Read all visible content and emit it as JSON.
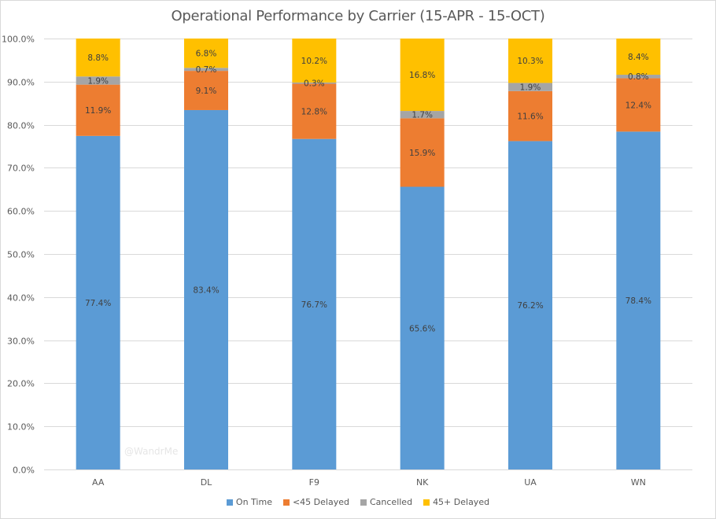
{
  "chart_data": {
    "type": "bar",
    "stacked": true,
    "title": "Operational Performance by Carrier (15-APR - 15-OCT)",
    "xlabel": "",
    "ylabel": "",
    "ylim": [
      0,
      100
    ],
    "y_ticks": [
      "0.0%",
      "10.0%",
      "20.0%",
      "30.0%",
      "40.0%",
      "50.0%",
      "60.0%",
      "70.0%",
      "80.0%",
      "90.0%",
      "100.0%"
    ],
    "grid": true,
    "legend_position": "bottom",
    "categories": [
      "AA",
      "DL",
      "F9",
      "NK",
      "UA",
      "WN"
    ],
    "series": [
      {
        "name": "On Time",
        "color": "#5b9bd5",
        "values": [
          77.4,
          83.4,
          76.7,
          65.6,
          76.2,
          78.4
        ],
        "labels": [
          "77.4%",
          "83.4%",
          "76.7%",
          "65.6%",
          "76.2%",
          "78.4%"
        ]
      },
      {
        "name": "<45 Delayed",
        "color": "#ed7d31",
        "values": [
          11.9,
          9.1,
          12.8,
          15.9,
          11.6,
          12.4
        ],
        "labels": [
          "11.9%",
          "9.1%",
          "12.8%",
          "15.9%",
          "11.6%",
          "12.4%"
        ]
      },
      {
        "name": "Cancelled",
        "color": "#a5a5a5",
        "values": [
          1.9,
          0.7,
          0.3,
          1.7,
          1.9,
          0.8
        ],
        "labels": [
          "1.9%",
          "0.7%",
          "0.3%",
          "1.7%",
          "1.9%",
          "0.8%"
        ]
      },
      {
        "name": "45+ Delayed",
        "color": "#ffc000",
        "values": [
          8.8,
          6.8,
          10.2,
          16.8,
          10.3,
          8.4
        ],
        "labels": [
          "8.8%",
          "6.8%",
          "10.2%",
          "16.8%",
          "10.3%",
          "8.4%"
        ]
      }
    ],
    "annotations": [
      "@WandrMe"
    ]
  }
}
